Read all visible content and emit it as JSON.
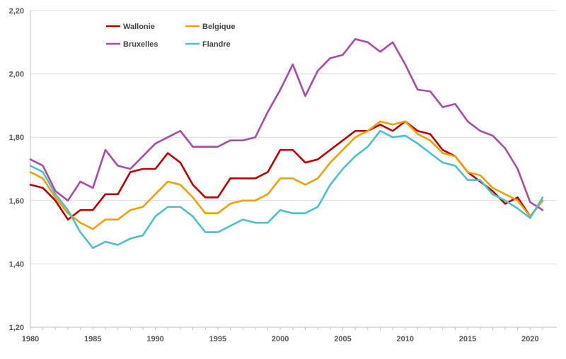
{
  "chart_data": {
    "type": "line",
    "title": "",
    "xlabel": "",
    "ylabel": "",
    "ylim": [
      1.2,
      2.2
    ],
    "xlim": [
      1980,
      2021
    ],
    "y_ticks": [
      "1,20",
      "1,40",
      "1,60",
      "1,80",
      "2,00",
      "2,20"
    ],
    "x_ticks": [
      "1980",
      "1985",
      "1990",
      "1995",
      "2000",
      "2005",
      "2010",
      "2015",
      "2020"
    ],
    "grid": "horizontal",
    "legend_position": "top-left",
    "x": [
      1980,
      1981,
      1982,
      1983,
      1984,
      1985,
      1986,
      1987,
      1988,
      1989,
      1990,
      1991,
      1992,
      1993,
      1994,
      1995,
      1996,
      1997,
      1998,
      1999,
      2000,
      2001,
      2002,
      2003,
      2004,
      2005,
      2006,
      2007,
      2008,
      2009,
      2010,
      2011,
      2012,
      2013,
      2014,
      2015,
      2016,
      2017,
      2018,
      2019,
      2020,
      2021
    ],
    "series": [
      {
        "name": "Wallonie",
        "color": "#c00000",
        "values": [
          1.65,
          1.64,
          1.6,
          1.54,
          1.57,
          1.57,
          1.62,
          1.62,
          1.69,
          1.7,
          1.7,
          1.75,
          1.72,
          1.65,
          1.61,
          1.61,
          1.67,
          1.67,
          1.67,
          1.69,
          1.76,
          1.76,
          1.72,
          1.73,
          1.76,
          1.79,
          1.82,
          1.82,
          1.84,
          1.82,
          1.85,
          1.82,
          1.81,
          1.76,
          1.74,
          1.69,
          1.66,
          1.63,
          1.59,
          1.61,
          1.55,
          1.6
        ]
      },
      {
        "name": "Belgique",
        "color": "#f29f05",
        "values": [
          1.69,
          1.67,
          1.61,
          1.56,
          1.53,
          1.51,
          1.54,
          1.54,
          1.57,
          1.58,
          1.62,
          1.66,
          1.65,
          1.61,
          1.56,
          1.56,
          1.59,
          1.6,
          1.6,
          1.62,
          1.67,
          1.67,
          1.65,
          1.67,
          1.72,
          1.76,
          1.8,
          1.82,
          1.85,
          1.84,
          1.85,
          1.81,
          1.79,
          1.75,
          1.74,
          1.69,
          1.68,
          1.64,
          1.62,
          1.6,
          1.55,
          1.6
        ]
      },
      {
        "name": "Bruxelles",
        "color": "#a64ca6",
        "values": [
          1.73,
          1.71,
          1.63,
          1.6,
          1.66,
          1.64,
          1.76,
          1.71,
          1.7,
          1.74,
          1.78,
          1.8,
          1.82,
          1.77,
          1.77,
          1.77,
          1.79,
          1.79,
          1.8,
          1.88,
          1.95,
          2.03,
          1.93,
          2.01,
          2.05,
          2.06,
          2.11,
          2.1,
          2.07,
          2.1,
          2.03,
          1.95,
          1.945,
          1.895,
          1.905,
          1.85,
          1.82,
          1.805,
          1.765,
          1.7,
          1.595,
          1.57
        ]
      },
      {
        "name": "Flandre",
        "color": "#4bbfcd",
        "values": [
          1.71,
          1.69,
          1.62,
          1.57,
          1.5,
          1.45,
          1.47,
          1.46,
          1.48,
          1.49,
          1.55,
          1.58,
          1.58,
          1.55,
          1.5,
          1.5,
          1.52,
          1.54,
          1.53,
          1.53,
          1.57,
          1.56,
          1.56,
          1.58,
          1.65,
          1.7,
          1.74,
          1.77,
          1.82,
          1.8,
          1.805,
          1.78,
          1.75,
          1.72,
          1.71,
          1.665,
          1.665,
          1.62,
          1.6,
          1.575,
          1.545,
          1.61
        ]
      }
    ]
  }
}
